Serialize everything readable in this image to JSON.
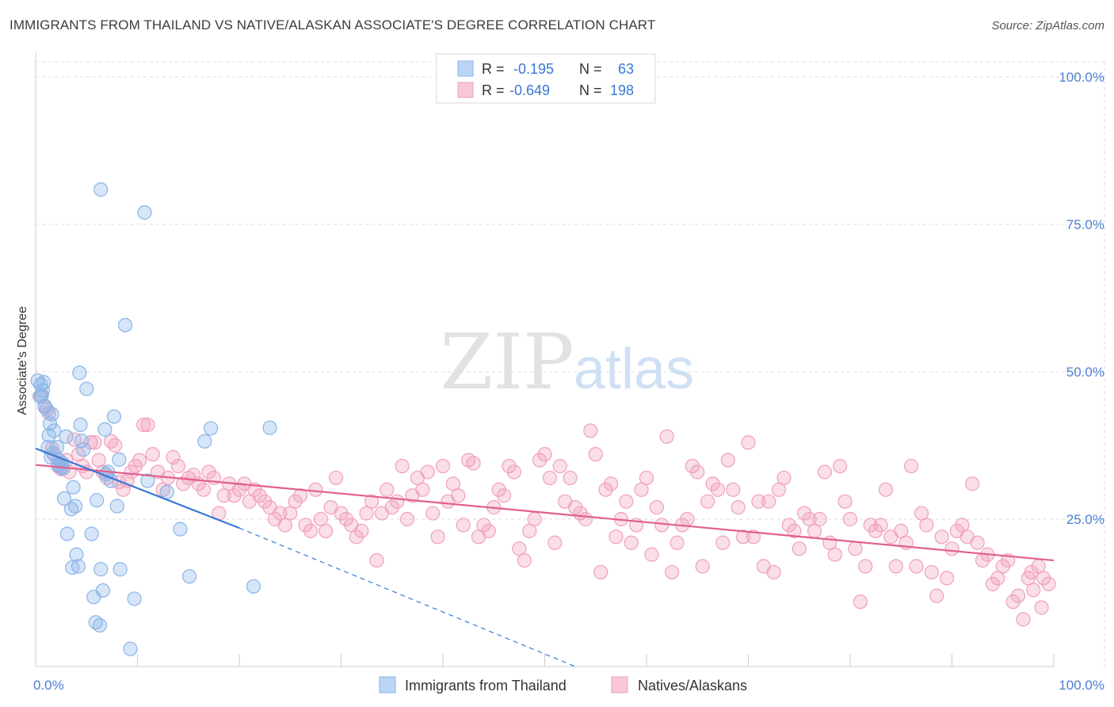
{
  "header": {
    "title": "IMMIGRANTS FROM THAILAND VS NATIVE/ALASKAN ASSOCIATE'S DEGREE CORRELATION CHART",
    "source": "Source: ZipAtlas.com"
  },
  "watermark": {
    "zip": "ZIP",
    "atlas": "atlas"
  },
  "colors": {
    "blue": "#8ab4e8",
    "blue_line": "#3a78d4",
    "pink": "#f0a0bc",
    "pink_line": "#e0608c",
    "axis_text": "#4a7fd0",
    "grid": "#dddddd"
  },
  "chart_data": {
    "type": "scatter",
    "title": "IMMIGRANTS FROM THAILAND VS NATIVE/ALASKAN ASSOCIATE'S DEGREE CORRELATION CHART",
    "xlabel": "",
    "ylabel": "Associate's Degree",
    "xlim": [
      0,
      100
    ],
    "ylim": [
      0,
      100
    ],
    "x_tick_labels": {
      "left": "0.0%",
      "right": "100.0%"
    },
    "y_tick_labels": [
      "25.0%",
      "50.0%",
      "75.0%",
      "100.0%"
    ],
    "y_ticks": [
      25,
      50,
      75,
      100
    ],
    "legend_stats": [
      {
        "r_label": "R =",
        "r_value": "-0.195",
        "n_label": "N =",
        "n_value": "63"
      },
      {
        "r_label": "R =",
        "r_value": "-0.649",
        "n_label": "N =",
        "n_value": "198"
      }
    ],
    "series": [
      {
        "name": "Immigrants from Thailand",
        "regression": {
          "x0": 0,
          "y0": 37.0,
          "x1": 20,
          "y1": 23.5,
          "dash_to_x": 53,
          "dash_to_y": 0
        },
        "points": [
          [
            0.2,
            48.5
          ],
          [
            0.5,
            47.8
          ],
          [
            0.7,
            46.8
          ],
          [
            0.4,
            45.8
          ],
          [
            0.9,
            44.2
          ],
          [
            1.1,
            43.6
          ],
          [
            1.4,
            41.2
          ],
          [
            1.6,
            42.8
          ],
          [
            1.3,
            39.2
          ],
          [
            1.8,
            40
          ],
          [
            2.1,
            37.2
          ],
          [
            1.2,
            37.2
          ],
          [
            1.7,
            36.2
          ],
          [
            2.3,
            35
          ],
          [
            2.6,
            34.5
          ],
          [
            2.5,
            33.8
          ],
          [
            2.7,
            33.6
          ],
          [
            2.8,
            28.5
          ],
          [
            3.1,
            22.5
          ],
          [
            3.5,
            26.7
          ],
          [
            3.7,
            30.4
          ],
          [
            3.6,
            16.8
          ],
          [
            4.0,
            19
          ],
          [
            4.2,
            17
          ],
          [
            3.9,
            27.2
          ],
          [
            4.4,
            41
          ],
          [
            4.5,
            38.3
          ],
          [
            4.3,
            49.8
          ],
          [
            5.0,
            47.1
          ],
          [
            4.7,
            36.8
          ],
          [
            5.5,
            22.5
          ],
          [
            5.7,
            11.8
          ],
          [
            6.0,
            28.2
          ],
          [
            5.9,
            7.5
          ],
          [
            6.3,
            7
          ],
          [
            6.4,
            16.5
          ],
          [
            6.6,
            12.9
          ],
          [
            6.8,
            40.2
          ],
          [
            6.9,
            32.6
          ],
          [
            7.1,
            33
          ],
          [
            7.4,
            31.5
          ],
          [
            7.7,
            42.4
          ],
          [
            8.0,
            27.2
          ],
          [
            8.2,
            35.1
          ],
          [
            8.3,
            16.5
          ],
          [
            8.8,
            57.9
          ],
          [
            9.7,
            11.5
          ],
          [
            9.3,
            3
          ],
          [
            10.7,
            77
          ],
          [
            12.9,
            29.6
          ],
          [
            14.2,
            23.3
          ],
          [
            11,
            31.5
          ],
          [
            15.1,
            15.3
          ],
          [
            16.6,
            38.2
          ],
          [
            17.2,
            40.4
          ],
          [
            23.0,
            40.5
          ],
          [
            21.4,
            13.6
          ],
          [
            6.4,
            80.9
          ],
          [
            0.6,
            46
          ],
          [
            0.8,
            48.2
          ],
          [
            3.0,
            39
          ],
          [
            1.5,
            35.5
          ],
          [
            2.2,
            34.2
          ]
        ]
      },
      {
        "name": "Natives/Alaskans",
        "regression": {
          "x0": 0,
          "y0": 34.2,
          "x1": 100,
          "y1": 18.0
        },
        "points": [
          [
            0.5,
            46
          ],
          [
            0.9,
            44
          ],
          [
            1.3,
            43
          ],
          [
            1.6,
            37
          ],
          [
            1.9,
            35.8
          ],
          [
            2.2,
            34
          ],
          [
            2.5,
            33.5
          ],
          [
            3.0,
            35
          ],
          [
            3.3,
            33
          ],
          [
            3.8,
            38.5
          ],
          [
            4.2,
            36
          ],
          [
            4.6,
            34
          ],
          [
            5.0,
            33
          ],
          [
            5.4,
            38
          ],
          [
            5.8,
            38
          ],
          [
            6.2,
            35
          ],
          [
            6.6,
            33
          ],
          [
            7.0,
            32
          ],
          [
            7.4,
            38.2
          ],
          [
            7.8,
            37.5
          ],
          [
            8.2,
            31.3
          ],
          [
            8.6,
            30
          ],
          [
            9.0,
            31.5
          ],
          [
            9.4,
            33
          ],
          [
            9.8,
            34
          ],
          [
            10.2,
            35
          ],
          [
            10.6,
            41
          ],
          [
            11.0,
            41
          ],
          [
            11.5,
            36
          ],
          [
            12.0,
            33
          ],
          [
            12.5,
            30
          ],
          [
            13.0,
            32
          ],
          [
            13.5,
            35.5
          ],
          [
            14.0,
            34
          ],
          [
            14.5,
            31
          ],
          [
            15.0,
            32
          ],
          [
            15.5,
            32.5
          ],
          [
            16.0,
            31
          ],
          [
            16.5,
            30
          ],
          [
            17.0,
            33
          ],
          [
            17.5,
            32
          ],
          [
            18.0,
            26
          ],
          [
            18.5,
            29
          ],
          [
            19.0,
            31
          ],
          [
            19.5,
            29
          ],
          [
            20.0,
            30
          ],
          [
            20.5,
            31
          ],
          [
            21.0,
            28
          ],
          [
            21.5,
            30
          ],
          [
            22.0,
            29
          ],
          [
            22.5,
            28
          ],
          [
            23.0,
            27
          ],
          [
            23.5,
            25
          ],
          [
            24.0,
            26
          ],
          [
            24.5,
            24
          ],
          [
            25.0,
            26
          ],
          [
            25.5,
            28
          ],
          [
            26.0,
            29
          ],
          [
            26.5,
            24
          ],
          [
            27.0,
            23
          ],
          [
            27.5,
            30
          ],
          [
            28.0,
            25
          ],
          [
            28.5,
            23
          ],
          [
            29.0,
            27
          ],
          [
            29.5,
            32
          ],
          [
            30.0,
            26
          ],
          [
            30.5,
            25
          ],
          [
            31.0,
            24
          ],
          [
            31.5,
            22
          ],
          [
            32.0,
            23
          ],
          [
            32.5,
            26
          ],
          [
            33.0,
            28
          ],
          [
            33.5,
            18
          ],
          [
            34.0,
            26
          ],
          [
            34.5,
            30
          ],
          [
            35.0,
            27
          ],
          [
            35.5,
            28
          ],
          [
            36.0,
            34
          ],
          [
            36.5,
            25
          ],
          [
            37.0,
            29
          ],
          [
            37.5,
            32
          ],
          [
            38.0,
            30
          ],
          [
            38.5,
            33
          ],
          [
            39.0,
            26
          ],
          [
            39.5,
            22
          ],
          [
            40.0,
            34
          ],
          [
            40.5,
            28
          ],
          [
            41.0,
            31
          ],
          [
            41.5,
            29
          ],
          [
            42.0,
            24
          ],
          [
            42.5,
            35
          ],
          [
            43.0,
            34.5
          ],
          [
            43.5,
            22
          ],
          [
            44.0,
            24
          ],
          [
            44.5,
            23
          ],
          [
            45.0,
            27
          ],
          [
            45.5,
            30
          ],
          [
            46.0,
            29
          ],
          [
            46.5,
            34
          ],
          [
            47.0,
            33
          ],
          [
            47.5,
            20
          ],
          [
            48.0,
            18
          ],
          [
            48.5,
            23
          ],
          [
            49.0,
            25
          ],
          [
            49.5,
            35
          ],
          [
            50.0,
            36
          ],
          [
            50.5,
            32
          ],
          [
            51.0,
            21
          ],
          [
            51.5,
            34
          ],
          [
            52.0,
            28
          ],
          [
            52.5,
            32
          ],
          [
            53.0,
            27
          ],
          [
            53.5,
            26
          ],
          [
            54.0,
            25
          ],
          [
            54.5,
            40
          ],
          [
            55.0,
            36
          ],
          [
            55.5,
            16
          ],
          [
            56.0,
            30
          ],
          [
            56.5,
            31
          ],
          [
            57.0,
            22
          ],
          [
            57.5,
            25
          ],
          [
            58.0,
            28
          ],
          [
            58.5,
            21
          ],
          [
            59.0,
            24
          ],
          [
            59.5,
            30
          ],
          [
            60.0,
            32
          ],
          [
            60.5,
            19
          ],
          [
            61.0,
            27
          ],
          [
            61.5,
            24
          ],
          [
            62.0,
            39
          ],
          [
            62.5,
            16
          ],
          [
            63.0,
            21
          ],
          [
            63.5,
            24
          ],
          [
            64.0,
            25
          ],
          [
            64.5,
            34
          ],
          [
            65.0,
            33
          ],
          [
            65.5,
            17
          ],
          [
            66.0,
            28
          ],
          [
            66.5,
            31
          ],
          [
            67.0,
            30
          ],
          [
            67.5,
            21
          ],
          [
            68.0,
            35
          ],
          [
            68.5,
            30
          ],
          [
            69.0,
            27
          ],
          [
            69.5,
            22
          ],
          [
            70.0,
            38
          ],
          [
            70.5,
            22
          ],
          [
            71.0,
            28
          ],
          [
            71.5,
            17
          ],
          [
            72.0,
            28
          ],
          [
            72.5,
            16
          ],
          [
            73.0,
            30
          ],
          [
            73.5,
            32
          ],
          [
            74.0,
            24
          ],
          [
            74.5,
            23
          ],
          [
            75.0,
            20
          ],
          [
            75.5,
            26
          ],
          [
            76.0,
            25
          ],
          [
            76.5,
            23
          ],
          [
            77.0,
            25
          ],
          [
            77.5,
            33
          ],
          [
            78.0,
            21
          ],
          [
            78.5,
            19
          ],
          [
            79.0,
            34
          ],
          [
            79.5,
            28
          ],
          [
            80.0,
            25
          ],
          [
            80.5,
            20
          ],
          [
            81.0,
            11
          ],
          [
            81.5,
            17
          ],
          [
            82.0,
            24
          ],
          [
            82.5,
            23
          ],
          [
            83.0,
            24
          ],
          [
            83.5,
            30
          ],
          [
            84.0,
            22
          ],
          [
            84.5,
            17
          ],
          [
            85.0,
            23
          ],
          [
            85.5,
            21
          ],
          [
            86.0,
            34
          ],
          [
            86.5,
            17
          ],
          [
            87.0,
            26
          ],
          [
            87.5,
            24
          ],
          [
            88.0,
            16
          ],
          [
            88.5,
            12
          ],
          [
            89.0,
            22
          ],
          [
            89.5,
            15
          ],
          [
            90.0,
            20
          ],
          [
            90.5,
            23
          ],
          [
            91.0,
            24
          ],
          [
            91.5,
            22
          ],
          [
            92.0,
            31
          ],
          [
            92.5,
            21
          ],
          [
            93.0,
            18
          ],
          [
            93.5,
            19
          ],
          [
            94.0,
            14
          ],
          [
            94.5,
            15
          ],
          [
            95.0,
            17
          ],
          [
            95.5,
            18
          ],
          [
            96.0,
            11
          ],
          [
            96.5,
            12
          ],
          [
            97.0,
            8
          ],
          [
            97.5,
            15
          ],
          [
            98.0,
            13
          ],
          [
            98.5,
            17
          ],
          [
            99.0,
            15
          ],
          [
            99.5,
            14
          ],
          [
            98.8,
            10
          ],
          [
            97.8,
            16
          ]
        ]
      }
    ],
    "legend": [
      "Immigrants from Thailand",
      "Natives/Alaskans"
    ]
  }
}
